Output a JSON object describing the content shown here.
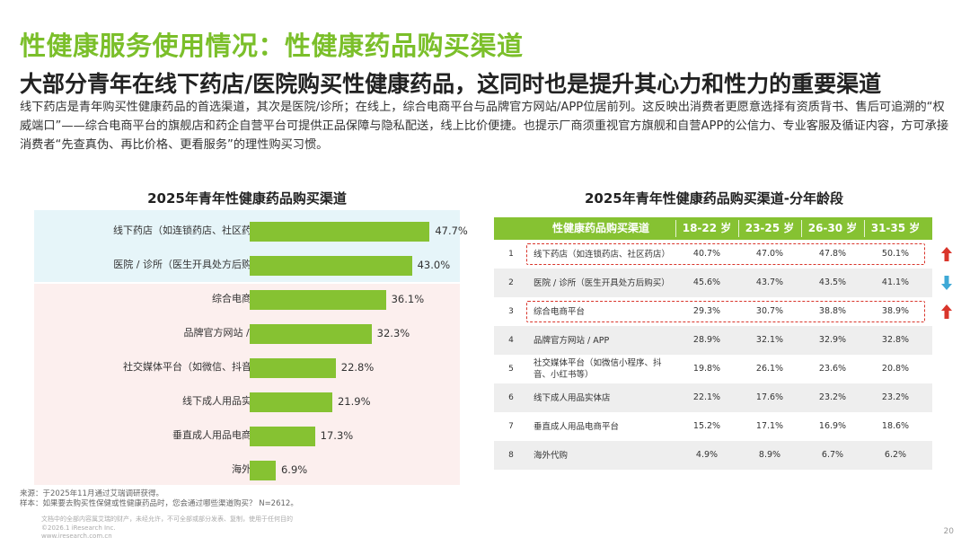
{
  "header": {
    "title": "性健康服务使用情况：性健康药品购买渠道",
    "subtitle": "大部分青年在线下药店/医院购买性健康药品，这同时也是提升其心力和性力的重要渠道",
    "description": "线下药店是青年购买性健康药品的首选渠道，其次是医院/诊所；在线上，综合电商平台与品牌官方网站/APP位居前列。这反映出消费者更愿意选择有资质背书、售后可追溯的“权威端口”——综合电商平台的旗舰店和药企自营平台可提供正品保障与隐私配送，线上比价便捷。也提示厂商须重视官方旗舰和自营APP的公信力、专业客服及循证内容，方可承接消费者“先查真伪、再比价格、更看服务”的理性购买习惯。"
  },
  "chart_data": [
    {
      "type": "bar",
      "orientation": "horizontal",
      "title": "2025年青年性健康药品购买渠道",
      "categories": [
        "线下药店（如连锁药店、社区药店）",
        "医院 / 诊所（医生开具处方后购买）",
        "综合电商平台",
        "品牌官方网站 / APP",
        "社交媒体平台（如微信、抖音等）",
        "线下成人用品实体店",
        "垂直成人用品电商平台",
        "海外代购"
      ],
      "values": [
        47.7,
        43.0,
        36.1,
        32.3,
        22.8,
        21.9,
        17.3,
        6.9
      ],
      "value_labels": [
        "47.7%",
        "43.0%",
        "36.1%",
        "32.3%",
        "22.8%",
        "21.9%",
        "17.3%",
        "6.9%"
      ],
      "xlim": [
        0,
        50
      ],
      "color": "#86c232",
      "background_groups": [
        {
          "rows": [
            0,
            1
          ],
          "color": "#e6f5f9"
        },
        {
          "rows": [
            2,
            3,
            4,
            5,
            6,
            7
          ],
          "color": "#fcefee"
        }
      ]
    },
    {
      "type": "table",
      "title": "2025年青年性健康药品购买渠道-分年龄段",
      "columns": [
        "性健康药品购买渠道",
        "18-22 岁",
        "23-25 岁",
        "26-30 岁",
        "31-35 岁"
      ],
      "rows": [
        {
          "rank": "1",
          "name": "线下药店（如连锁药店、社区药店）",
          "values": [
            "40.7%",
            "47.0%",
            "47.8%",
            "50.1%"
          ],
          "highlight": true,
          "trend": "up"
        },
        {
          "rank": "2",
          "name": "医院 / 诊所（医生开具处方后购买）",
          "values": [
            "45.6%",
            "43.7%",
            "43.5%",
            "41.1%"
          ],
          "highlight": false,
          "trend": "down"
        },
        {
          "rank": "3",
          "name": "综合电商平台",
          "values": [
            "29.3%",
            "30.7%",
            "38.8%",
            "38.9%"
          ],
          "highlight": true,
          "trend": "up"
        },
        {
          "rank": "4",
          "name": "品牌官方网站 / APP",
          "values": [
            "28.9%",
            "32.1%",
            "32.9%",
            "32.8%"
          ],
          "highlight": false,
          "trend": ""
        },
        {
          "rank": "5",
          "name": "社交媒体平台（如微信小程序、抖音、小红书等）",
          "values": [
            "19.8%",
            "26.1%",
            "23.6%",
            "20.8%"
          ],
          "highlight": false,
          "trend": ""
        },
        {
          "rank": "6",
          "name": "线下成人用品实体店",
          "values": [
            "22.1%",
            "17.6%",
            "23.2%",
            "23.2%"
          ],
          "highlight": false,
          "trend": ""
        },
        {
          "rank": "7",
          "name": "垂直成人用品电商平台",
          "values": [
            "15.2%",
            "17.1%",
            "16.9%",
            "18.6%"
          ],
          "highlight": false,
          "trend": ""
        },
        {
          "rank": "8",
          "name": "海外代购",
          "values": [
            "4.9%",
            "8.9%",
            "6.7%",
            "6.2%"
          ],
          "highlight": false,
          "trend": ""
        }
      ],
      "colors": {
        "header": "#86c232",
        "alt_row": "#eeeeee",
        "highlight": "#d9352b",
        "up": "#d9352b",
        "down": "#3fa9d6"
      }
    }
  ],
  "footer": {
    "source": "来源：于2025年11月通过艾瑞调研获得。",
    "sample": "样本：如果要去购买性保健或性健康药品时，您会通过哪些渠道购买？ N=2612。",
    "fine1": "文档中的全部内容属艾瑞的财产，未经允许，不可全部或部分发表、复制，使用于任何目的",
    "fine2": "©2026.1 iResearch Inc.",
    "fine3": "www.iresearch.com.cn",
    "page": "20"
  }
}
